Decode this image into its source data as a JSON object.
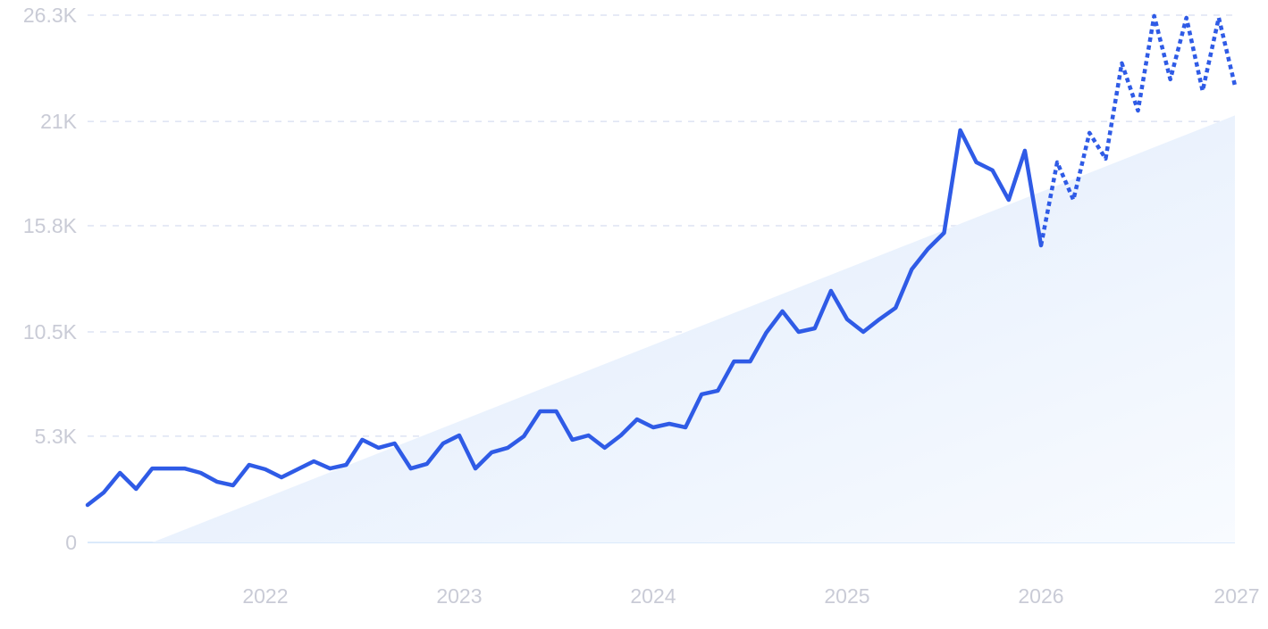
{
  "chart_data": {
    "type": "line",
    "title": "",
    "xlabel": "",
    "ylabel": "",
    "ylim": [
      0,
      26300
    ],
    "y_ticks": [
      "0",
      "5.3K",
      "10.5K",
      "15.8K",
      "21K",
      "26.3K"
    ],
    "y_tick_values": [
      0,
      5300,
      10500,
      15800,
      21000,
      26300
    ],
    "x_ticks": [
      "2022",
      "2023",
      "2024",
      "2025",
      "2026",
      "2027"
    ],
    "x_tick_dates": [
      "2022-01",
      "2023-01",
      "2024-01",
      "2025-01",
      "2026-01",
      "2027-01"
    ],
    "grid": "horizontal dashed",
    "colors": {
      "line": "#2f5be6",
      "trend_fill": "#e3eefc",
      "grid": "#dde3f3",
      "tick_text": "#c9cbd6"
    },
    "series": [
      {
        "style": "solid",
        "x": [
          "2021-02",
          "2021-03",
          "2021-04",
          "2021-05",
          "2021-06",
          "2021-07",
          "2021-08",
          "2021-09",
          "2021-10",
          "2021-11",
          "2021-12",
          "2022-01",
          "2022-02",
          "2022-03",
          "2022-04",
          "2022-05",
          "2022-06",
          "2022-07",
          "2022-08",
          "2022-09",
          "2022-10",
          "2022-11",
          "2022-12",
          "2023-01",
          "2023-02",
          "2023-03",
          "2023-04",
          "2023-05",
          "2023-06",
          "2023-07",
          "2023-08",
          "2023-09",
          "2023-10",
          "2023-11",
          "2023-12",
          "2024-01",
          "2024-02",
          "2024-03",
          "2024-04",
          "2024-05",
          "2024-06",
          "2024-07",
          "2024-08",
          "2024-09",
          "2024-10",
          "2024-11",
          "2024-12",
          "2025-01",
          "2025-02",
          "2025-03",
          "2025-04",
          "2025-05",
          "2025-06",
          "2025-07",
          "2025-08",
          "2025-09",
          "2025-10",
          "2025-11",
          "2025-12",
          "2026-01"
        ],
        "values": [
          1870,
          2490,
          3470,
          2670,
          3690,
          3690,
          3690,
          3470,
          3030,
          2850,
          3870,
          3650,
          3250,
          3650,
          4050,
          3690,
          3870,
          5120,
          4720,
          4940,
          3690,
          3920,
          4940,
          5340,
          3690,
          4490,
          4720,
          5300,
          6540,
          6540,
          5120,
          5340,
          4720,
          5340,
          6140,
          5740,
          5920,
          5740,
          7390,
          7570,
          9030,
          9030,
          10460,
          11530,
          10500,
          10680,
          12550,
          11130,
          10500,
          11130,
          11700,
          13620,
          14640,
          15440,
          20560,
          18960,
          18560,
          17090,
          19540,
          14820
        ]
      },
      {
        "style": "dotted",
        "x": [
          "2026-01",
          "2026-02",
          "2026-03",
          "2026-04",
          "2026-05",
          "2026-06",
          "2026-07",
          "2026-08",
          "2026-09",
          "2026-10",
          "2026-11",
          "2026-12",
          "2027-01"
        ],
        "values": [
          14820,
          18960,
          17090,
          20430,
          19140,
          23900,
          21540,
          26260,
          23100,
          26170,
          22520,
          26170,
          22790
        ]
      }
    ],
    "trend": {
      "x": [
        "2021-06",
        "2027-01"
      ],
      "values": [
        0,
        21300
      ]
    }
  }
}
